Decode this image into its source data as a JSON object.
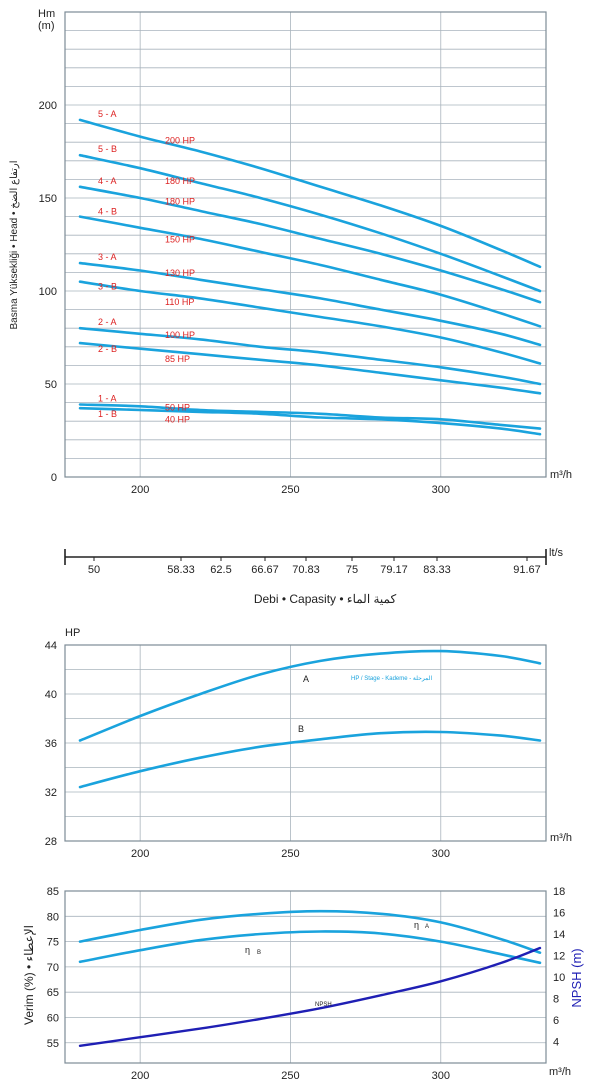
{
  "colors": {
    "curve": "#1aa3dd",
    "npsh": "#1f1fb4",
    "model_label": "#d22222",
    "grid": "#a9b4bd"
  },
  "x_axis": {
    "unit": "m³/h",
    "ticks": [
      200,
      250,
      300
    ],
    "range": [
      175,
      335
    ]
  },
  "lts_axis": {
    "unit": "lt/s",
    "ticks": [
      "50",
      "58.33",
      "62.5",
      "66.67",
      "70.83",
      "75",
      "79.17",
      "83.33",
      "91.67"
    ]
  },
  "flow_caption": "Debi • Capasity • كمية الماء",
  "head_chart": {
    "y_unit_line1": "Hm",
    "y_unit_line2": "(m)",
    "y_label": "Basma Yüksekliği • Head • ارتفاع الضخ",
    "y_ticks": [
      "0",
      "50",
      "100",
      "150",
      "200"
    ],
    "ylim": [
      0,
      250
    ]
  },
  "hp_chart": {
    "y_unit": "HP",
    "y_ticks": [
      "28",
      "32",
      "36",
      "40",
      "44"
    ],
    "ylim": [
      28,
      44
    ],
    "legend_note": "HP / Stage - Kademe - المرحلة",
    "curve_labels": [
      "A",
      "B"
    ]
  },
  "eff_chart": {
    "y_label_left": "Verim (%) • الإعطاء",
    "y_label_right": "NPSH (m)",
    "y_ticks_left": [
      "55",
      "60",
      "65",
      "70",
      "75",
      "80",
      "85"
    ],
    "y_ticks_right": [
      "4",
      "6",
      "8",
      "10",
      "12",
      "14",
      "16",
      "18"
    ],
    "ylim_left": [
      51,
      85
    ],
    "ylim_right": [
      2,
      18
    ],
    "eta_symbol": "η",
    "eta_a": "A",
    "eta_b": "B",
    "npsh_label": "NPSH"
  },
  "chart_data": [
    {
      "type": "line",
      "xlabel": "m³/h",
      "ylabel": "Basma Yüksekliği • Head • ارتفاع الضخ",
      "x": [
        180,
        200,
        220,
        240,
        260,
        280,
        300,
        320,
        333
      ],
      "ylim": [
        0,
        250
      ],
      "series": [
        {
          "name": "5 - A",
          "power": "200 HP",
          "values": [
            192,
            183,
            175,
            166,
            156,
            146,
            135,
            122,
            113
          ]
        },
        {
          "name": "5 - B",
          "power": "180 HP",
          "values": [
            173,
            166,
            158,
            150,
            141,
            131,
            120,
            108,
            100
          ]
        },
        {
          "name": "4 - A",
          "power": "180 HP",
          "values": [
            156,
            150,
            143,
            136,
            128,
            120,
            111,
            101,
            94
          ]
        },
        {
          "name": "4 - B",
          "power": "150 HP",
          "values": [
            140,
            134,
            128,
            121,
            114,
            106,
            98,
            88,
            81
          ]
        },
        {
          "name": "3 - A",
          "power": "130 HP",
          "values": [
            115,
            111,
            106,
            101,
            96,
            90,
            84,
            77,
            71
          ]
        },
        {
          "name": "3 - B",
          "power": "110 HP",
          "values": [
            105,
            100,
            96,
            91,
            86,
            81,
            75,
            67,
            61
          ]
        },
        {
          "name": "2 - A",
          "power": "100 HP",
          "values": [
            80,
            77,
            74,
            70,
            67,
            63,
            59,
            54,
            50
          ]
        },
        {
          "name": "2 - B",
          "power": "85 HP",
          "values": [
            72,
            69,
            66,
            63,
            60,
            56,
            52,
            48,
            45
          ]
        },
        {
          "name": "1 - A",
          "power": "50 HP",
          "values": [
            39,
            38,
            36,
            35,
            34,
            32,
            31,
            28,
            26
          ]
        },
        {
          "name": "1 - B",
          "power": "40 HP",
          "values": [
            37,
            36,
            35,
            34,
            32,
            31,
            29,
            26,
            23
          ]
        }
      ]
    },
    {
      "type": "line",
      "ylabel": "HP",
      "x": [
        180,
        200,
        220,
        240,
        260,
        280,
        300,
        320,
        333
      ],
      "ylim": [
        28,
        44
      ],
      "series": [
        {
          "name": "A",
          "values": [
            36.2,
            38.2,
            40.0,
            41.6,
            42.7,
            43.3,
            43.5,
            43.1,
            42.5
          ]
        },
        {
          "name": "B",
          "values": [
            32.4,
            33.7,
            34.8,
            35.7,
            36.3,
            36.8,
            36.9,
            36.6,
            36.2
          ]
        }
      ]
    },
    {
      "type": "line",
      "ylabel": "Verim (%) • الإعطاء",
      "y2label": "NPSH (m)",
      "x": [
        180,
        200,
        220,
        240,
        260,
        280,
        300,
        320,
        333
      ],
      "series": [
        {
          "name": "η A",
          "axis": "left",
          "values": [
            75.0,
            77.3,
            79.3,
            80.5,
            81.0,
            80.5,
            78.8,
            75.5,
            72.8
          ]
        },
        {
          "name": "η B",
          "axis": "left",
          "values": [
            71.0,
            73.3,
            75.3,
            76.5,
            77.0,
            76.6,
            75.0,
            72.5,
            70.8
          ]
        },
        {
          "name": "NPSH",
          "axis": "right",
          "values": [
            3.6,
            4.4,
            5.2,
            6.1,
            7.1,
            8.3,
            9.6,
            11.3,
            12.7
          ]
        }
      ]
    }
  ]
}
